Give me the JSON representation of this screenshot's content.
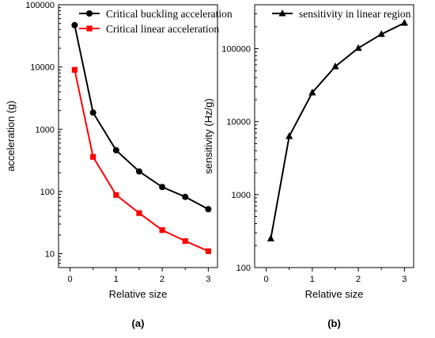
{
  "chart_data": [
    {
      "type": "line",
      "panel_label": "(a)",
      "xlabel": "Relative size",
      "ylabel": "acceleration (g)",
      "xlim": [
        -0.25,
        3.2
      ],
      "ylim": [
        6,
        100000
      ],
      "yscale": "log",
      "x_ticks": [
        0,
        1,
        2,
        3
      ],
      "x_tick_labels": [
        "0",
        "1",
        "2",
        "3"
      ],
      "y_ticks": [
        10,
        100,
        1000,
        10000,
        100000
      ],
      "y_tick_labels": [
        "10",
        "100",
        "1000",
        "10000",
        "100000"
      ],
      "grid": false,
      "legend": "top-right",
      "x": [
        0.1,
        0.5,
        1,
        1.5,
        2,
        2.5,
        3
      ],
      "series": [
        {
          "name": "Critical buckling acceleration",
          "color": "#000000",
          "marker": "circle",
          "values": [
            47000,
            1850,
            460,
            210,
            118,
            82,
            52
          ]
        },
        {
          "name": "Critical linear acceleration",
          "color": "#ff0000",
          "marker": "square",
          "values": [
            9000,
            360,
            88,
            45,
            24,
            16,
            11
          ]
        }
      ]
    },
    {
      "type": "line",
      "panel_label": "(b)",
      "xlabel": "Relative size",
      "ylabel": "sensitivity (Hz/g)",
      "xlim": [
        -0.25,
        3.2
      ],
      "ylim": [
        100,
        400000
      ],
      "yscale": "log",
      "x_ticks": [
        0,
        1,
        2,
        3
      ],
      "x_tick_labels": [
        "0",
        "1",
        "2",
        "3"
      ],
      "y_ticks": [
        100,
        1000,
        10000,
        100000
      ],
      "y_tick_labels": [
        "100",
        "1000",
        "10000",
        "100000"
      ],
      "grid": false,
      "legend": "top",
      "x": [
        0.1,
        0.5,
        1,
        1.5,
        2,
        2.5,
        3
      ],
      "series": [
        {
          "name": "sensitivity in linear region",
          "color": "#000000",
          "marker": "triangle",
          "values": [
            250,
            6300,
            25000,
            57000,
            102000,
            158000,
            225000
          ]
        }
      ]
    }
  ]
}
